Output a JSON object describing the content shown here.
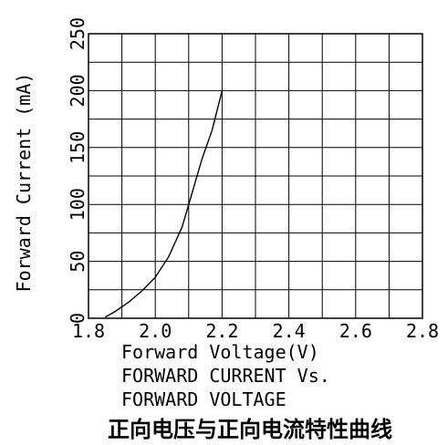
{
  "chart_data": {
    "type": "line",
    "title": "",
    "xlabel": "Forward Voltage(V)",
    "ylabel": "Forward Current (mA)",
    "xlim": [
      1.8,
      2.8
    ],
    "ylim": [
      0,
      250
    ],
    "x_ticks": [
      "1.8",
      "2.0",
      "2.2",
      "2.4",
      "2.6",
      "2.8"
    ],
    "y_ticks": [
      "0",
      "50",
      "100",
      "150",
      "200",
      "250"
    ],
    "grid": true,
    "series": [
      {
        "values_xy": [
          [
            1.85,
            1
          ],
          [
            1.88,
            6
          ],
          [
            1.92,
            14
          ],
          [
            1.96,
            24
          ],
          [
            2.0,
            36
          ],
          [
            2.04,
            54
          ],
          [
            2.08,
            80
          ],
          [
            2.11,
            110
          ],
          [
            2.14,
            140
          ],
          [
            2.17,
            165
          ],
          [
            2.2,
            200
          ]
        ]
      }
    ],
    "caption_lines": [
      "FORWARD CURRENT Vs.",
      "FORWARD VOLTAGE"
    ],
    "caption_cn": "正向电压与正向电流特性曲线"
  }
}
